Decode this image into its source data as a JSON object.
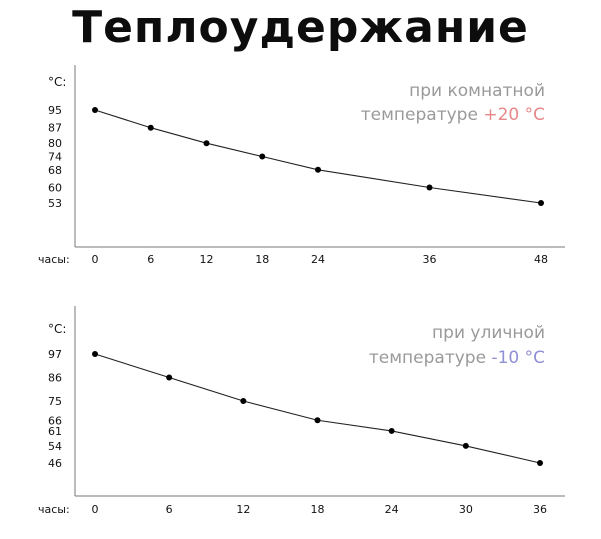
{
  "title": "Теплоудержание",
  "chart_data": [
    {
      "type": "line",
      "ylabel": "°C:",
      "xlabel": "часы:",
      "annotation": {
        "line1": "при комнатной",
        "line2_prefix": "температуре ",
        "line2_highlight": "+20 °C",
        "highlight_color": "#e8878a"
      },
      "x": [
        0,
        6,
        12,
        18,
        24,
        36,
        48
      ],
      "y": [
        95,
        87,
        80,
        74,
        68,
        60,
        53
      ],
      "xticks": [
        "0",
        "6",
        "12",
        "18",
        "24",
        "36",
        "48"
      ],
      "yticks": [
        "95",
        "87",
        "80",
        "74",
        "68",
        "60",
        "53"
      ],
      "xlim": [
        0,
        48
      ],
      "line_color": "#222222",
      "grid": false
    },
    {
      "type": "line",
      "ylabel": "°C:",
      "xlabel": "часы:",
      "annotation": {
        "line1": "при уличной",
        "line2_prefix": "температуре ",
        "line2_highlight": "-10 °C",
        "highlight_color": "#8f8fd4"
      },
      "x": [
        0,
        6,
        12,
        18,
        24,
        30,
        36
      ],
      "y": [
        97,
        86,
        75,
        66,
        61,
        54,
        46
      ],
      "xticks": [
        "0",
        "6",
        "12",
        "18",
        "24",
        "30",
        "36"
      ],
      "yticks": [
        "97",
        "86",
        "75",
        "66",
        "61",
        "54",
        "46"
      ],
      "xlim": [
        0,
        36
      ],
      "line_color": "#222222",
      "grid": false
    }
  ]
}
